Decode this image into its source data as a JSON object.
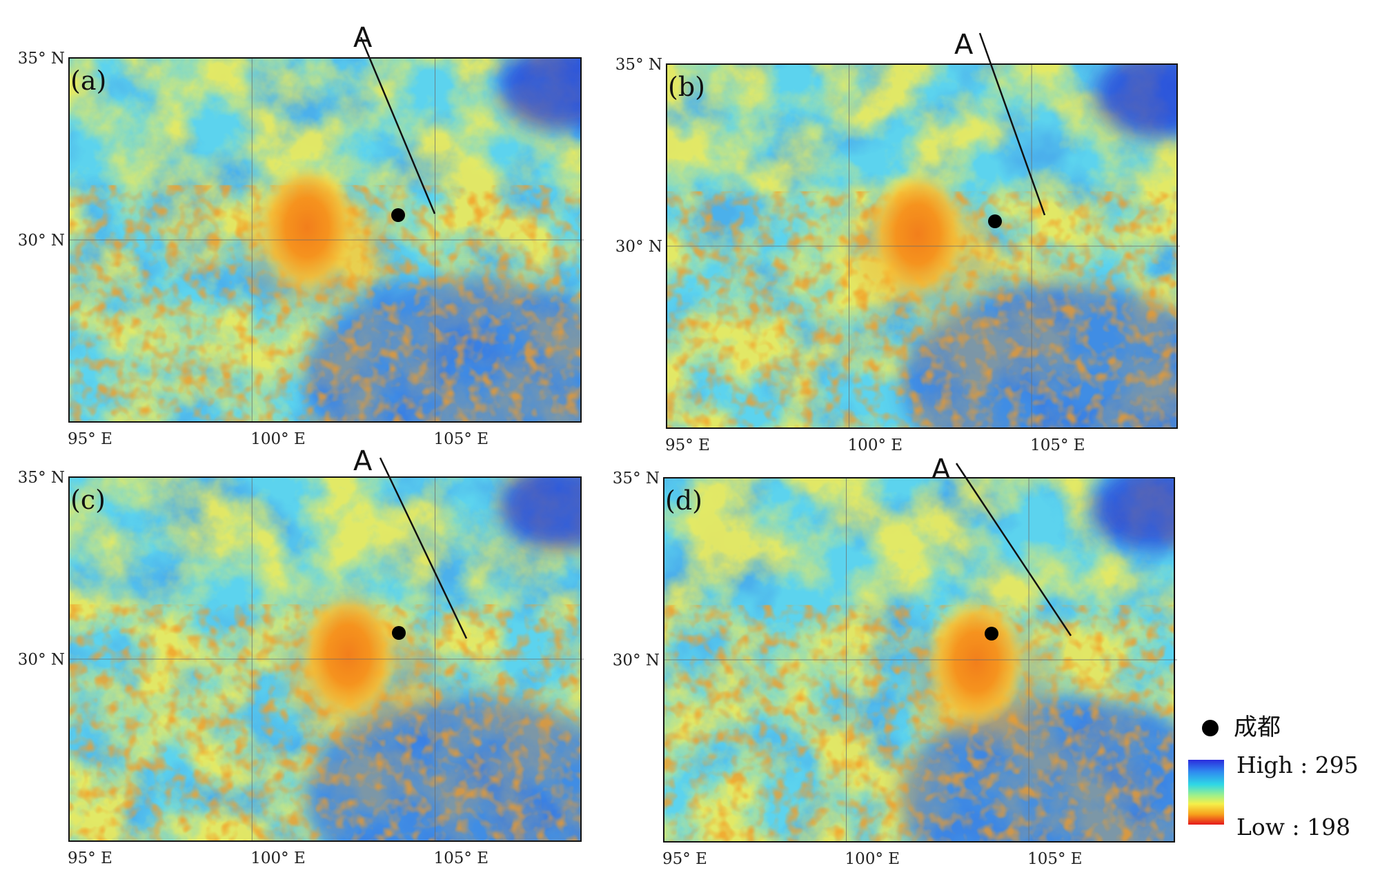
{
  "figure": {
    "panels": [
      {
        "id": "a",
        "label": "(a)",
        "track_label": "A"
      },
      {
        "id": "b",
        "label": "(b)",
        "track_label": "A"
      },
      {
        "id": "c",
        "label": "(c)",
        "track_label": "A"
      },
      {
        "id": "d",
        "label": "(d)",
        "track_label": "A"
      }
    ],
    "axes": {
      "lon_labels": [
        "95° E",
        "100° E",
        "105° E"
      ],
      "lat_labels": [
        "35° N",
        "30° N"
      ],
      "lon_values": [
        95,
        100,
        105
      ],
      "lat_values": [
        35,
        30
      ]
    },
    "legend": {
      "city_name": "成都",
      "high_label": "High : 295",
      "low_label": "Low : 198",
      "high_value": 295,
      "low_value": 198
    },
    "colors": {
      "scale_low": "#e5181c",
      "scale_mid_low": "#f7a21c",
      "scale_mid": "#f5f04a",
      "scale_mid_high": "#2fd7e6",
      "scale_high": "#2b2bdc",
      "city_marker": "#000000",
      "track_line": "#111111"
    }
  }
}
